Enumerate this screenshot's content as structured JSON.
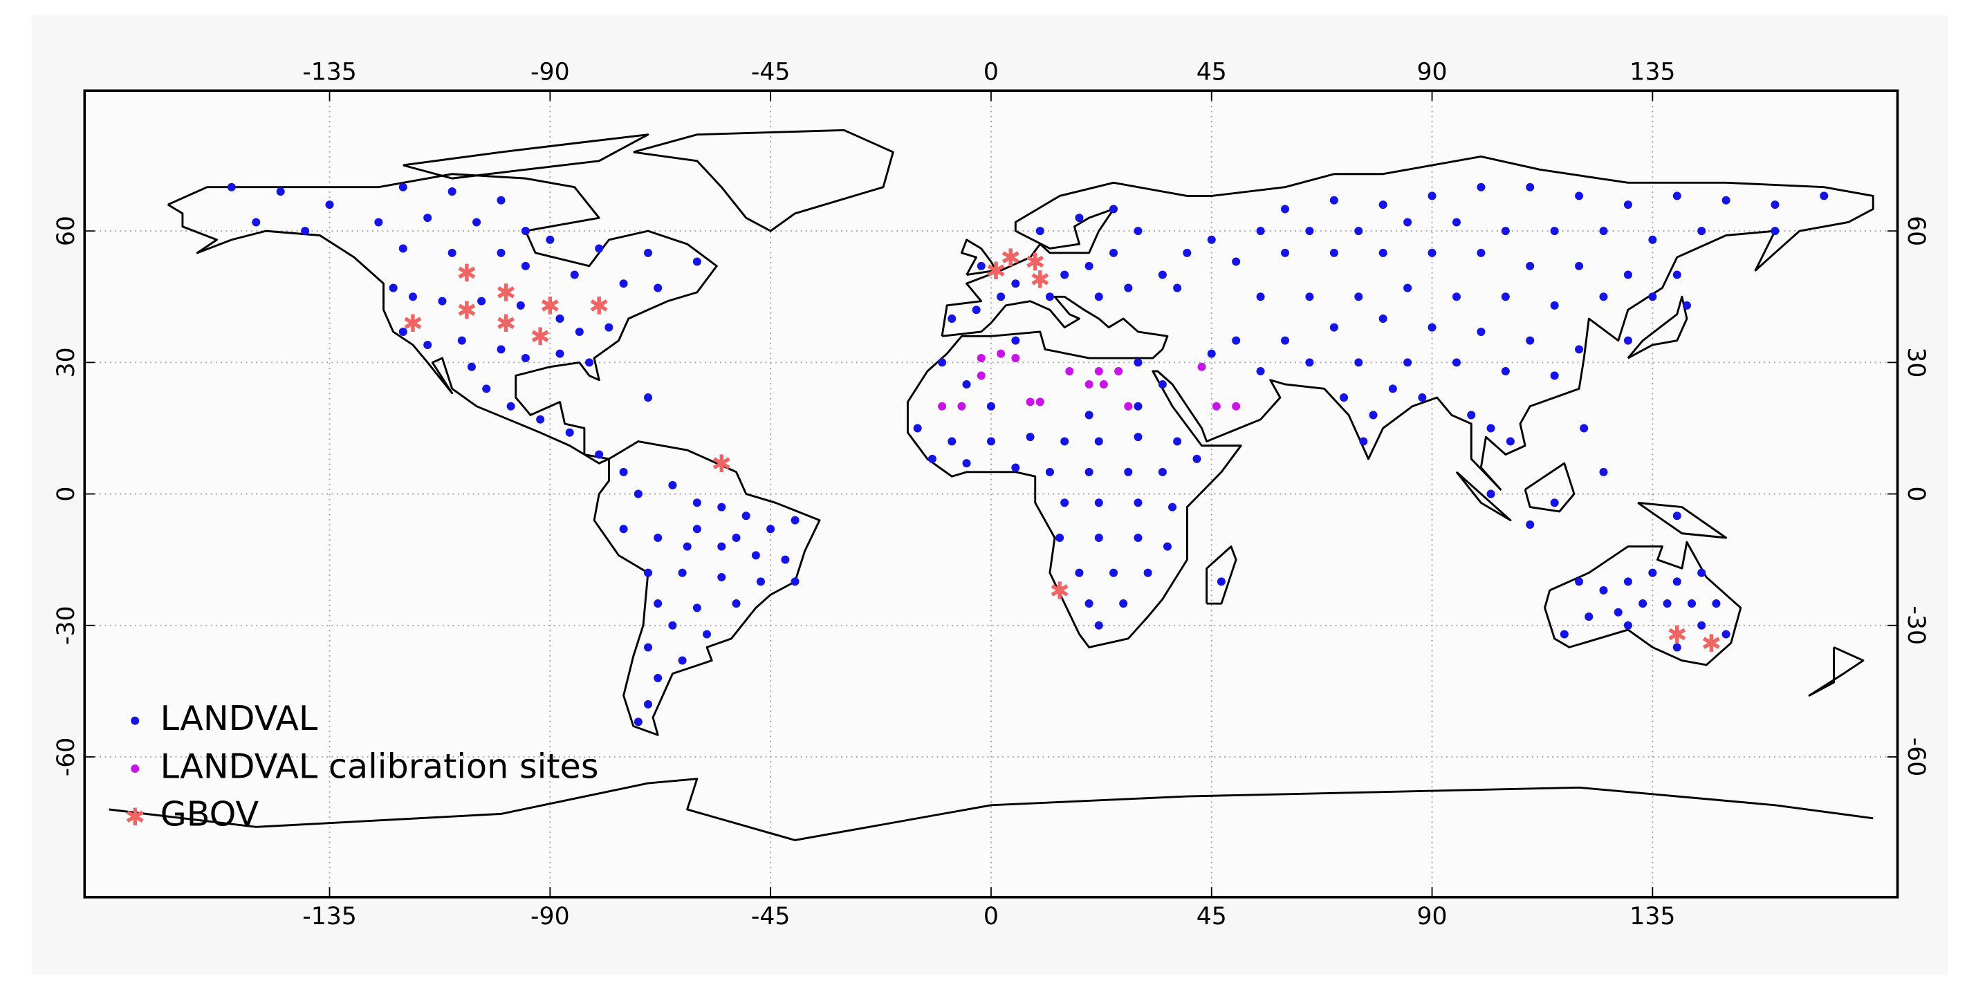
{
  "chart_data": {
    "type": "scatter",
    "xlim": [
      -185,
      185
    ],
    "ylim": [
      -92,
      92
    ],
    "xticks": [
      -135,
      -90,
      -45,
      0,
      45,
      90,
      135
    ],
    "yticks": [
      -60,
      -30,
      0,
      30,
      60
    ],
    "grid": true,
    "legend": "lower left",
    "series": [
      {
        "name": "LANDVAL",
        "color": "#1414e6",
        "marker": "dot",
        "x": [
          -155,
          -145,
          -135,
          -120,
          -110,
          -100,
          -150,
          -140,
          -125,
          -115,
          -105,
          -95,
          -90,
          -80,
          -70,
          -60,
          -120,
          -110,
          -100,
          -95,
          -85,
          -75,
          -68,
          -122,
          -118,
          -112,
          -104,
          -96,
          -88,
          -84,
          -78,
          -120,
          -115,
          -108,
          -100,
          -95,
          -88,
          -82,
          -106,
          -103,
          -98,
          -92,
          -86,
          -80,
          -75,
          -70,
          -72,
          -65,
          -60,
          -55,
          -50,
          -45,
          -40,
          -75,
          -68,
          -62,
          -55,
          -48,
          -42,
          -70,
          -63,
          -55,
          -47,
          -40,
          -68,
          -60,
          -52,
          -65,
          -58,
          -70,
          -63,
          -68,
          -70,
          -72,
          -60,
          -52,
          -8,
          -3,
          2,
          5,
          -2,
          12,
          15,
          20,
          25,
          30,
          10,
          18,
          25,
          22,
          28,
          35,
          40,
          45,
          50,
          38,
          60,
          70,
          80,
          90,
          100,
          110,
          120,
          130,
          140,
          150,
          160,
          170,
          55,
          65,
          75,
          85,
          95,
          105,
          115,
          125,
          135,
          145,
          160,
          60,
          70,
          80,
          90,
          100,
          110,
          120,
          130,
          140,
          55,
          65,
          75,
          85,
          95,
          105,
          115,
          125,
          135,
          142,
          50,
          60,
          70,
          80,
          90,
          100,
          110,
          120,
          130,
          45,
          55,
          65,
          75,
          85,
          95,
          105,
          115,
          72,
          78,
          82,
          88,
          76,
          98,
          102,
          106,
          121,
          115,
          110,
          102,
          140,
          125,
          -15,
          -8,
          0,
          8,
          15,
          22,
          30,
          38,
          -12,
          -5,
          5,
          12,
          20,
          28,
          35,
          42,
          15,
          22,
          30,
          37,
          14,
          22,
          30,
          36,
          18,
          25,
          32,
          20,
          27,
          22,
          47,
          0,
          -5,
          20,
          30,
          35,
          -10,
          5,
          30,
          120,
          125,
          130,
          135,
          140,
          145,
          122,
          128,
          133,
          138,
          143,
          148,
          117,
          130,
          145,
          150,
          140
        ],
        "y": [
          70,
          69,
          66,
          70,
          69,
          67,
          62,
          60,
          62,
          63,
          62,
          60,
          58,
          56,
          55,
          53,
          56,
          55,
          55,
          52,
          50,
          48,
          47,
          47,
          45,
          44,
          44,
          43,
          40,
          37,
          38,
          37,
          34,
          35,
          33,
          31,
          32,
          30,
          29,
          24,
          20,
          17,
          14,
          9,
          5,
          22,
          0,
          2,
          -2,
          -3,
          -5,
          -8,
          -6,
          -8,
          -10,
          -12,
          -12,
          -14,
          -15,
          -18,
          -18,
          -19,
          -20,
          -20,
          -25,
          -26,
          -25,
          -30,
          -32,
          -35,
          -38,
          -42,
          -48,
          -52,
          -8,
          -10,
          40,
          42,
          45,
          48,
          52,
          45,
          50,
          52,
          55,
          60,
          60,
          63,
          65,
          45,
          47,
          50,
          55,
          58,
          53,
          47,
          65,
          67,
          66,
          68,
          70,
          70,
          68,
          66,
          68,
          67,
          66,
          68,
          60,
          60,
          60,
          62,
          62,
          60,
          60,
          60,
          58,
          60,
          60,
          55,
          55,
          55,
          55,
          55,
          52,
          52,
          50,
          50,
          45,
          45,
          45,
          47,
          45,
          45,
          43,
          45,
          45,
          43,
          35,
          35,
          38,
          40,
          38,
          37,
          35,
          33,
          35,
          32,
          28,
          30,
          30,
          30,
          30,
          28,
          27,
          22,
          18,
          24,
          22,
          12,
          18,
          15,
          12,
          15,
          -2,
          -7,
          0,
          -5,
          5,
          15,
          12,
          12,
          13,
          12,
          12,
          13,
          12,
          8,
          7,
          6,
          5,
          5,
          5,
          5,
          8,
          -2,
          -2,
          -2,
          -3,
          -10,
          -10,
          -10,
          -12,
          -18,
          -18,
          -18,
          -25,
          -25,
          -30,
          -20,
          20,
          25,
          18,
          20,
          25,
          30,
          35,
          30,
          -20,
          -22,
          -20,
          -18,
          -20,
          -18,
          -28,
          -27,
          -25,
          -25,
          -25,
          -25,
          -32,
          -30,
          -30,
          -32,
          -35
        ]
      },
      {
        "name": "LANDVAL calibration sites",
        "color": "#c814e6",
        "marker": "dot",
        "x": [
          2,
          -2,
          -2,
          5,
          8,
          10,
          -10,
          -6,
          16,
          26,
          23,
          28,
          46,
          50,
          43,
          22,
          20
        ],
        "y": [
          32,
          27,
          31,
          31,
          21,
          21,
          20,
          20,
          28,
          28,
          25,
          20,
          20,
          20,
          29,
          28,
          25
        ]
      },
      {
        "name": "GBOV",
        "color": "#f06464",
        "marker": "asterisk",
        "x": [
          -107,
          -107,
          -99,
          -90,
          -99,
          -92,
          -118,
          -80,
          -55,
          1,
          4,
          9,
          10,
          14,
          140,
          147
        ],
        "y": [
          50.5,
          42,
          46,
          43,
          39,
          36,
          39,
          43,
          7,
          51,
          54,
          53,
          49,
          -22,
          -32,
          -34
        ]
      }
    ]
  }
}
